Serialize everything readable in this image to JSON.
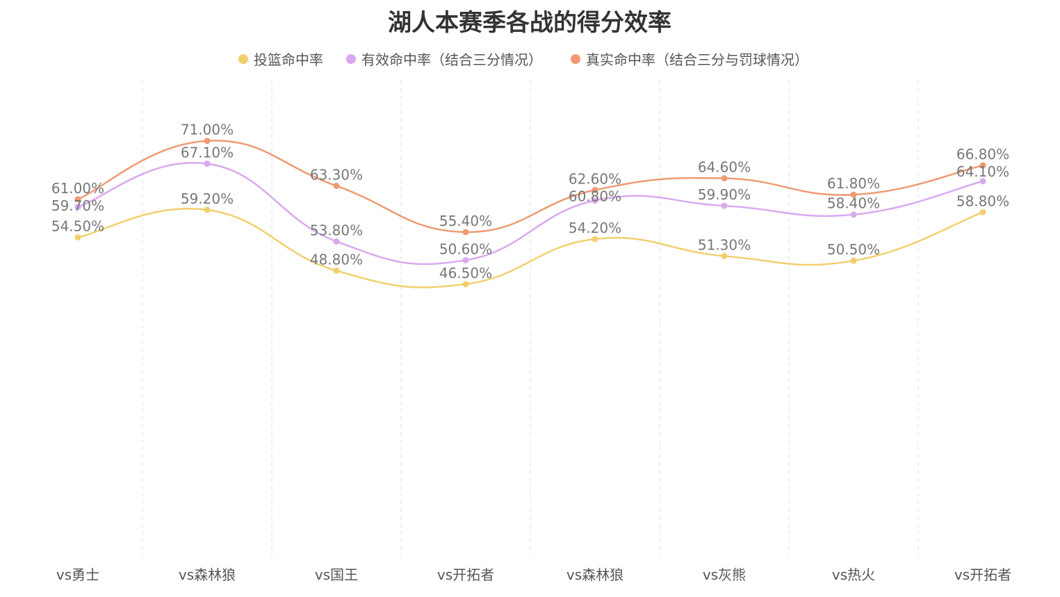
{
  "chart_data": {
    "type": "line",
    "title": "湖人本赛季各战的得分效率",
    "categories": [
      "vs勇士",
      "vs森林狼",
      "vs国王",
      "vs开拓者",
      "vs森林狼",
      "vs灰熊",
      "vs热火",
      "vs开拓者"
    ],
    "series": [
      {
        "name": "投篮命中率",
        "color": "#f2cf6e",
        "values": [
          54.5,
          59.2,
          48.8,
          46.5,
          54.2,
          51.3,
          50.5,
          58.8
        ]
      },
      {
        "name": "有效命中率（结合三分情况）",
        "color": "#d9a9ef",
        "values": [
          59.7,
          67.1,
          53.8,
          50.6,
          60.8,
          59.9,
          58.4,
          64.1
        ]
      },
      {
        "name": "真实命中率（结合三分与罚球情况）",
        "color": "#ef9a72",
        "values": [
          61.0,
          71.0,
          63.3,
          55.4,
          62.6,
          64.6,
          61.8,
          66.8
        ]
      }
    ],
    "value_suffix": "%",
    "ylim": [
      0,
      80
    ],
    "smooth": true,
    "legend_position": "top-center",
    "vertical_grid": "dashed",
    "y_axis_visible": false
  }
}
